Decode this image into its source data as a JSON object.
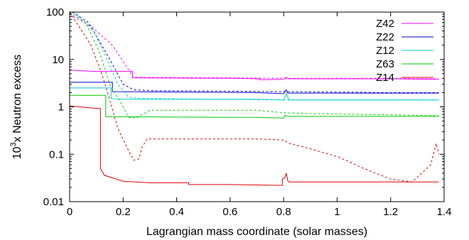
{
  "chart_data": {
    "type": "line",
    "xlabel": "Lagrangian mass coordinate (solar masses)",
    "ylabel_base": "10",
    "ylabel_exp": "3",
    "ylabel_rest": "x Neutron excess",
    "xlim": [
      0,
      1.4
    ],
    "ylim": [
      0.01,
      100
    ],
    "yscale": "log",
    "grid": false,
    "legend_position": "top-right",
    "x_ticks": [
      {
        "value": 0,
        "label": "0"
      },
      {
        "value": 0.2,
        "label": "0.2"
      },
      {
        "value": 0.4,
        "label": "0.4"
      },
      {
        "value": 0.6,
        "label": "0.6"
      },
      {
        "value": 0.8,
        "label": "0.8"
      },
      {
        "value": 1.0,
        "label": "1"
      },
      {
        "value": 1.2,
        "label": "1.2"
      },
      {
        "value": 1.4,
        "label": "1.4"
      }
    ],
    "y_ticks": [
      {
        "value": 100,
        "label": "100"
      },
      {
        "value": 10,
        "label": "10"
      },
      {
        "value": 1,
        "label": "1"
      },
      {
        "value": 0.1,
        "label": "0.1"
      },
      {
        "value": 0.01,
        "label": "0.01"
      }
    ],
    "series": [
      {
        "name": "Z42",
        "color": "#ff00ff",
        "solid": [
          [
            0,
            6
          ],
          [
            0.09,
            5.6
          ],
          [
            0.235,
            5.6
          ],
          [
            0.235,
            4.1
          ],
          [
            0.6,
            4.0
          ],
          [
            0.71,
            3.9
          ],
          [
            0.71,
            3.75
          ],
          [
            0.8,
            3.8
          ],
          [
            0.81,
            4.2
          ],
          [
            0.82,
            3.9
          ],
          [
            1.2,
            3.9
          ],
          [
            1.38,
            3.8
          ]
        ],
        "dashed": [
          [
            0,
            90
          ],
          [
            0.08,
            50
          ],
          [
            0.16,
            20
          ],
          [
            0.2,
            9
          ],
          [
            0.23,
            5
          ],
          [
            0.235,
            4.2
          ],
          [
            0.6,
            4.1
          ],
          [
            0.8,
            4.0
          ],
          [
            1.2,
            4.0
          ],
          [
            1.38,
            3.9
          ]
        ]
      },
      {
        "name": "Z22",
        "color": "#0000cc",
        "solid": [
          [
            0,
            3.3
          ],
          [
            0.16,
            3.3
          ],
          [
            0.16,
            2.1
          ],
          [
            0.7,
            2.0
          ],
          [
            0.8,
            1.9
          ],
          [
            0.81,
            2.3
          ],
          [
            0.815,
            1.95
          ],
          [
            1.2,
            1.95
          ],
          [
            1.38,
            1.95
          ]
        ],
        "dashed": [
          [
            0.01,
            100
          ],
          [
            0.07,
            60
          ],
          [
            0.12,
            20
          ],
          [
            0.16,
            8
          ],
          [
            0.2,
            3
          ],
          [
            0.24,
            2.3
          ],
          [
            0.3,
            2.2
          ],
          [
            0.8,
            2.1
          ],
          [
            1.2,
            2.0
          ],
          [
            1.38,
            2.0
          ]
        ]
      },
      {
        "name": "Z12",
        "color": "#00cccc",
        "solid": [
          [
            0,
            2.5
          ],
          [
            0.155,
            2.5
          ],
          [
            0.155,
            1.5
          ],
          [
            0.2,
            1.45
          ],
          [
            0.7,
            1.45
          ],
          [
            0.8,
            1.4
          ],
          [
            0.81,
            1.9
          ],
          [
            0.82,
            1.4
          ],
          [
            1.2,
            1.4
          ],
          [
            1.38,
            1.4
          ]
        ],
        "dashed": [
          [
            0.02,
            95
          ],
          [
            0.09,
            40
          ],
          [
            0.14,
            10
          ],
          [
            0.18,
            3
          ],
          [
            0.22,
            1.6
          ],
          [
            0.26,
            1.5
          ],
          [
            0.8,
            1.4
          ],
          [
            1.2,
            1.4
          ],
          [
            1.38,
            1.4
          ]
        ]
      },
      {
        "name": "Z63",
        "color": "#00cc00",
        "solid": [
          [
            0,
            1.75
          ],
          [
            0.135,
            1.75
          ],
          [
            0.135,
            0.62
          ],
          [
            0.2,
            0.62
          ],
          [
            0.6,
            0.6
          ],
          [
            0.7,
            0.6
          ],
          [
            0.8,
            0.58
          ],
          [
            0.805,
            0.66
          ],
          [
            0.82,
            0.63
          ],
          [
            1.2,
            0.63
          ],
          [
            1.38,
            0.63
          ]
        ],
        "dashed": [
          [
            0,
            100
          ],
          [
            0.06,
            60
          ],
          [
            0.11,
            15
          ],
          [
            0.15,
            3
          ],
          [
            0.2,
            1.0
          ],
          [
            0.22,
            0.6
          ],
          [
            0.25,
            0.58
          ],
          [
            0.3,
            0.85
          ],
          [
            0.7,
            0.85
          ],
          [
            0.8,
            0.75
          ],
          [
            0.9,
            0.72
          ],
          [
            1.2,
            0.68
          ],
          [
            1.38,
            0.65
          ]
        ]
      },
      {
        "name": "Z14",
        "color": "#dd0000",
        "solid": [
          [
            0,
            1.05
          ],
          [
            0.08,
            0.95
          ],
          [
            0.115,
            0.92
          ],
          [
            0.115,
            0.05
          ],
          [
            0.13,
            0.036
          ],
          [
            0.2,
            0.027
          ],
          [
            0.3,
            0.025
          ],
          [
            0.445,
            0.025
          ],
          [
            0.445,
            0.023
          ],
          [
            0.6,
            0.023
          ],
          [
            0.795,
            0.022
          ],
          [
            0.795,
            0.03
          ],
          [
            0.805,
            0.032
          ],
          [
            0.81,
            0.04
          ],
          [
            0.815,
            0.028
          ],
          [
            0.82,
            0.026
          ],
          [
            1.2,
            0.026
          ],
          [
            1.38,
            0.026
          ]
        ],
        "dashed": [
          [
            0,
            100
          ],
          [
            0.08,
            20
          ],
          [
            0.12,
            5
          ],
          [
            0.15,
            1.4
          ],
          [
            0.18,
            0.35
          ],
          [
            0.22,
            0.12
          ],
          [
            0.24,
            0.075
          ],
          [
            0.26,
            0.08
          ],
          [
            0.27,
            0.14
          ],
          [
            0.29,
            0.21
          ],
          [
            0.7,
            0.21
          ],
          [
            0.8,
            0.2
          ],
          [
            0.82,
            0.17
          ],
          [
            0.88,
            0.14
          ],
          [
            1.0,
            0.09
          ],
          [
            1.1,
            0.05
          ],
          [
            1.2,
            0.03
          ],
          [
            1.28,
            0.026
          ],
          [
            1.35,
            0.06
          ],
          [
            1.37,
            0.17
          ],
          [
            1.38,
            0.1
          ]
        ]
      }
    ]
  }
}
